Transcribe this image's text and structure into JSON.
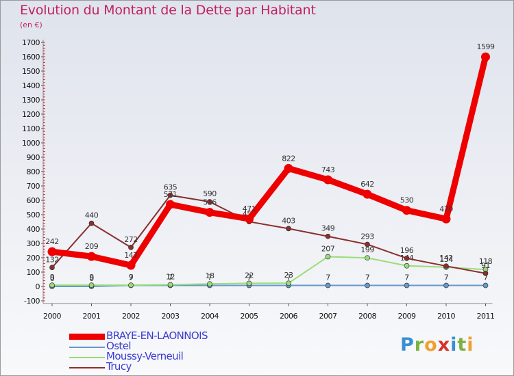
{
  "title": "Evolution du Montant de la Dette par Habitant",
  "subtitle": "(en €)",
  "logo": {
    "letters": [
      "P",
      "r",
      "o",
      "x",
      "i",
      "t",
      "i"
    ],
    "colors": [
      "#3a8fd1",
      "#7bb242",
      "#f0a030",
      "#d8312b",
      "#3a8fd1",
      "#7bb242",
      "#f0a030"
    ]
  },
  "chart_data": {
    "type": "line",
    "title": "Evolution du Montant de la Dette par Habitant",
    "subtitle": "(en €)",
    "x": [
      "2000",
      "2001",
      "2002",
      "2003",
      "2004",
      "2005",
      "2006",
      "2007",
      "2008",
      "2009",
      "2010",
      "2011"
    ],
    "ylim": [
      -100,
      1700
    ],
    "yticks": [
      "-100",
      "0",
      "100",
      "200",
      "300",
      "400",
      "500",
      "600",
      "700",
      "800",
      "900",
      "1000",
      "1100",
      "1200",
      "1300",
      "1400",
      "1500",
      "1600",
      "1700"
    ],
    "grid": false,
    "legend_position": "bottom-left",
    "series": [
      {
        "name": "BRAYE-EN-LAONNOIS",
        "color": "#ee0000",
        "width": 9,
        "values": [
          242,
          209,
          147,
          571,
          516,
          471,
          822,
          743,
          642,
          530,
          470,
          1599
        ],
        "labels": [
          "242",
          "209",
          "147",
          "571",
          "516",
          "471",
          "822",
          "743",
          "642",
          "530",
          "470",
          "1599"
        ]
      },
      {
        "name": "Ostel",
        "color": "#6699cc",
        "width": 2,
        "values": [
          0,
          0,
          7,
          7,
          7,
          7,
          7,
          7,
          7,
          7,
          7,
          7
        ],
        "labels": [
          "0",
          "0",
          "7",
          "7",
          "7",
          "7",
          "7",
          "7",
          "7",
          "7",
          "7",
          "7"
        ]
      },
      {
        "name": "Moussy-Verneuil",
        "color": "#99dd77",
        "width": 2,
        "values": [
          9,
          9,
          9,
          12,
          18,
          22,
          23,
          207,
          199,
          144,
          134,
          118
        ],
        "labels": [
          "9",
          "9",
          "9",
          "12",
          "18",
          "22",
          "23",
          "207",
          "199",
          "144",
          "134",
          "118"
        ]
      },
      {
        "name": "Trucy",
        "color": "#8b2e2e",
        "width": 2,
        "values": [
          132,
          440,
          272,
          635,
          590,
          451,
          403,
          349,
          293,
          196,
          142,
          91
        ],
        "labels": [
          "132",
          "440",
          "272",
          "635",
          "590",
          "451",
          "403",
          "349",
          "293",
          "196",
          "142",
          "91"
        ]
      }
    ]
  }
}
